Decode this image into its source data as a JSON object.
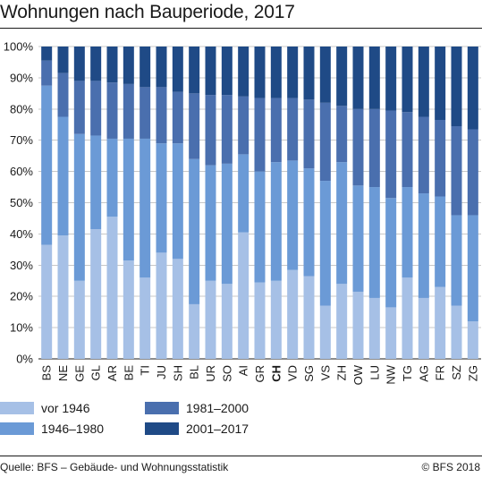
{
  "title": "Wohnungen nach Bauperiode, 2017",
  "footer": {
    "source": "Quelle: BFS – Gebäude- und Wohnungsstatistik",
    "copyright": "© BFS 2018"
  },
  "colors": {
    "vor_1946": "#a6c0e6",
    "1946_1980": "#6b9ad6",
    "1981_2000": "#4a6fae",
    "2001_2017": "#1f4a86"
  },
  "chart_data": {
    "type": "bar",
    "stacked": true,
    "title": "Wohnungen nach Bauperiode, 2017",
    "xlabel": "",
    "ylabel": "",
    "ylim": [
      0,
      100
    ],
    "yticks": [
      "0%",
      "10%",
      "20%",
      "30%",
      "40%",
      "50%",
      "60%",
      "70%",
      "80%",
      "90%",
      "100%"
    ],
    "grid": true,
    "legend_position": "bottom",
    "highlight_category": "CH",
    "categories": [
      "BS",
      "NE",
      "GE",
      "GL",
      "AR",
      "BE",
      "TI",
      "JU",
      "SH",
      "BL",
      "UR",
      "SO",
      "AI",
      "GR",
      "CH",
      "VD",
      "SG",
      "VS",
      "ZH",
      "OW",
      "LU",
      "NW",
      "TG",
      "AG",
      "FR",
      "SZ",
      "ZG"
    ],
    "series": [
      {
        "name": "vor 1946",
        "color": "#a6c0e6",
        "values": [
          36.5,
          39.5,
          25,
          41.5,
          45.5,
          31.5,
          26,
          34,
          32,
          17.5,
          25,
          24,
          40.5,
          24.5,
          25,
          28.5,
          26.5,
          17,
          24,
          21.5,
          19.5,
          16.5,
          26,
          19.5,
          23,
          17,
          12
        ]
      },
      {
        "name": "1946–1980",
        "color": "#6b9ad6",
        "values": [
          51,
          38,
          47,
          30,
          25,
          39,
          44.5,
          35,
          37,
          46.5,
          37,
          38.5,
          25,
          35.5,
          38,
          35,
          34.5,
          40,
          39,
          34,
          35.5,
          35,
          29,
          33.5,
          29,
          29,
          34
        ]
      },
      {
        "name": "1981–2000",
        "color": "#4a6fae",
        "values": [
          8,
          14,
          17,
          17.5,
          18,
          17.5,
          16.5,
          18,
          16.5,
          21,
          22.5,
          22,
          18.5,
          23.5,
          20.5,
          20,
          22,
          25,
          18,
          24.5,
          25,
          28,
          24,
          24.5,
          24.5,
          28.5,
          27.5
        ]
      },
      {
        "name": "2001–2017",
        "color": "#1f4a86",
        "values": [
          4.5,
          8.5,
          11,
          11,
          11.5,
          12,
          13,
          13,
          14.5,
          15,
          15.5,
          15.5,
          16,
          16.5,
          16.5,
          16.5,
          17,
          18,
          19,
          20,
          20,
          20.5,
          21,
          22.5,
          23.5,
          25.5,
          26.5
        ]
      }
    ]
  }
}
